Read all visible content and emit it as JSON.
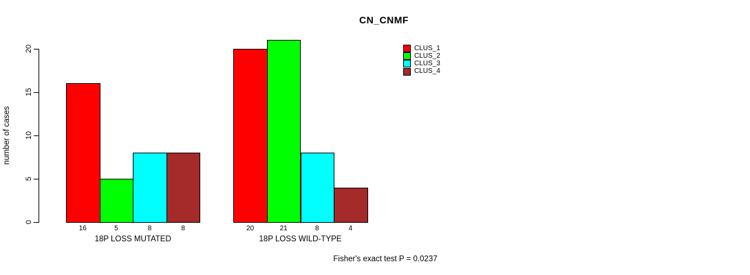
{
  "chart_data": {
    "type": "bar",
    "title": "CN_CNMF",
    "ylabel": "number of cases",
    "xlabel": "",
    "ylim": [
      0,
      20
    ],
    "yticks": [
      0,
      5,
      10,
      15,
      20
    ],
    "grid": false,
    "legend_position": "top-right",
    "bar_value_labels_shown": true,
    "categories": [
      "18P LOSS MUTATED",
      "18P LOSS WILD-TYPE"
    ],
    "series": [
      {
        "name": "CLUS_1",
        "color": "#ff0000",
        "values": [
          16,
          20
        ]
      },
      {
        "name": "CLUS_2",
        "color": "#00ff00",
        "values": [
          5,
          21
        ]
      },
      {
        "name": "CLUS_3",
        "color": "#00ffff",
        "values": [
          8,
          8
        ]
      },
      {
        "name": "CLUS_4",
        "color": "#a52a2a",
        "values": [
          8,
          4
        ]
      }
    ],
    "annotation": "Fisher's exact test P = 0.0237"
  },
  "colors": {
    "axis": "#000000",
    "text": "#000000",
    "background": "#ffffff"
  }
}
